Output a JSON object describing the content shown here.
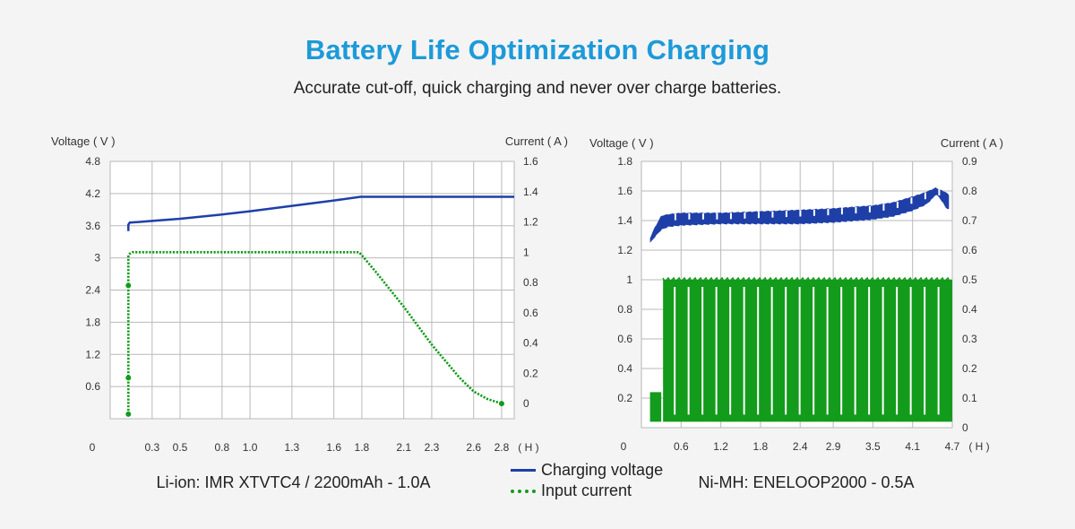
{
  "header": {
    "title": "Battery Life Optimization Charging",
    "subtitle": "Accurate cut-off, quick charging and never over charge batteries."
  },
  "legend": {
    "voltage_label": "Charging voltage",
    "current_label": "Input current"
  },
  "colors": {
    "voltage": "#1f3fa8",
    "current": "#139b1b",
    "title": "#1d9ad8",
    "grid": "#b9b9b9"
  },
  "chart_data": [
    {
      "type": "line",
      "caption": "Li-ion: IMR XTVTC4 / 2200mAh - 1.0A",
      "ylabel": "Voltage ( V )",
      "y2label": "Current ( A )",
      "x_unit": "( H )",
      "x_ticks": [
        "0",
        "0.3",
        "0.5",
        "0.8",
        "1.0",
        "1.3",
        "1.6",
        "1.8",
        "2.1",
        "2.3",
        "2.6",
        "2.8"
      ],
      "y_ticks": [
        "0.6",
        "1.2",
        "1.8",
        "2.4",
        "3",
        "3.6",
        "4.2",
        "4.8"
      ],
      "y2_ticks": [
        "0",
        "0.2",
        "0.4",
        "0.6",
        "0.8",
        "1",
        "1.2",
        "1.4",
        "1.6"
      ],
      "xlim": [
        0,
        2.89
      ],
      "ylim": [
        0,
        4.8
      ],
      "y2lim": [
        -0.1,
        1.6
      ],
      "grid": true,
      "series": [
        {
          "name": "Charging voltage",
          "axis": "left",
          "style": "solid",
          "x": [
            0.13,
            0.13,
            0.14,
            0.2,
            0.3,
            0.5,
            0.8,
            1.0,
            1.3,
            1.6,
            1.79,
            1.8,
            2.1,
            2.5,
            2.89
          ],
          "y": [
            3.5,
            3.62,
            3.66,
            3.67,
            3.69,
            3.73,
            3.81,
            3.87,
            3.97,
            4.07,
            4.14,
            4.14,
            4.14,
            4.14,
            4.14
          ]
        },
        {
          "name": "Input current",
          "axis": "right",
          "style": "dotted",
          "x": [
            0.13,
            0.13,
            0.13,
            0.13,
            0.14,
            0.16,
            0.2,
            0.5,
            1.0,
            1.5,
            1.78,
            1.8,
            1.9,
            2.1,
            2.3,
            2.5,
            2.6,
            2.7,
            2.8
          ],
          "y": [
            -0.07,
            0.17,
            0.78,
            0.98,
            0.99,
            1.0,
            1.0,
            1.0,
            1.0,
            1.0,
            1.0,
            0.98,
            0.87,
            0.64,
            0.39,
            0.17,
            0.08,
            0.03,
            0.0
          ]
        }
      ]
    },
    {
      "type": "line",
      "caption": "Ni-MH: ENELOOP2000 - 0.5A",
      "ylabel": "Voltage ( V )",
      "y2label": "Current ( A )",
      "x_unit": "( H )",
      "x_ticks": [
        "0",
        "0.6",
        "1.2",
        "1.8",
        "2.4",
        "2.9",
        "3.5",
        "4.1",
        "4.7"
      ],
      "y_ticks": [
        "0.2",
        "0.4",
        "0.6",
        "0.8",
        "1",
        "1.2",
        "1.4",
        "1.6",
        "1.8"
      ],
      "y2_ticks": [
        "0",
        "0.1",
        "0.2",
        "0.3",
        "0.4",
        "0.5",
        "0.6",
        "0.7",
        "0.8",
        "0.9"
      ],
      "xlim": [
        0,
        4.7
      ],
      "ylim": [
        0,
        1.8
      ],
      "y2lim": [
        0,
        0.9
      ],
      "grid": true,
      "series": [
        {
          "name": "Charging voltage",
          "axis": "left",
          "style": "pulsed band",
          "x": [
            0.13,
            0.2,
            0.3,
            0.4,
            0.6,
            1.2,
            1.8,
            2.4,
            2.9,
            3.5,
            3.8,
            4.1,
            4.3,
            4.4,
            4.45,
            4.5,
            4.55,
            4.6,
            4.65
          ],
          "y_low": [
            1.25,
            1.29,
            1.34,
            1.36,
            1.37,
            1.38,
            1.38,
            1.38,
            1.39,
            1.41,
            1.43,
            1.47,
            1.51,
            1.55,
            1.58,
            1.56,
            1.53,
            1.49,
            1.48
          ],
          "y_high": [
            1.28,
            1.35,
            1.43,
            1.44,
            1.45,
            1.45,
            1.46,
            1.47,
            1.48,
            1.5,
            1.52,
            1.56,
            1.59,
            1.61,
            1.62,
            1.61,
            1.6,
            1.59,
            1.57
          ]
        },
        {
          "name": "Input current",
          "axis": "right",
          "style": "pulsed",
          "x": [
            0.13,
            0.3,
            0.6,
            1.2,
            1.8,
            2.4,
            2.9,
            3.5,
            4.1,
            4.4,
            4.7
          ],
          "y": [
            0.12,
            0.5,
            0.5,
            0.5,
            0.5,
            0.5,
            0.5,
            0.5,
            0.5,
            0.5,
            0.5
          ]
        }
      ]
    }
  ]
}
